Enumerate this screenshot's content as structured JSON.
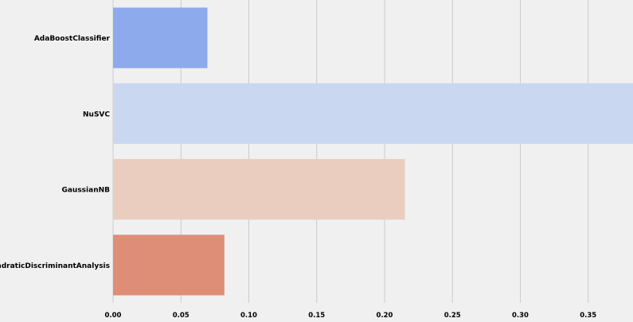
{
  "chart_data": {
    "type": "bar",
    "orientation": "horizontal",
    "categories": [
      "AdaBoostClassifier",
      "NuSVC",
      "GaussianNB",
      "QuadraticDiscriminantAnalysis"
    ],
    "values": [
      0.0695,
      0.383,
      0.215,
      0.082
    ],
    "colors": [
      "#8daaec",
      "#c9d7f0",
      "#ebcdbf",
      "#de8e77"
    ],
    "xticks": [
      0.0,
      0.05,
      0.1,
      0.15,
      0.2,
      0.25,
      0.3,
      0.35
    ],
    "xtick_labels": [
      "0.00",
      "0.05",
      "0.10",
      "0.15",
      "0.20",
      "0.25",
      "0.30",
      "0.35"
    ],
    "xlim": [
      0,
      0.383
    ],
    "grid": true
  }
}
